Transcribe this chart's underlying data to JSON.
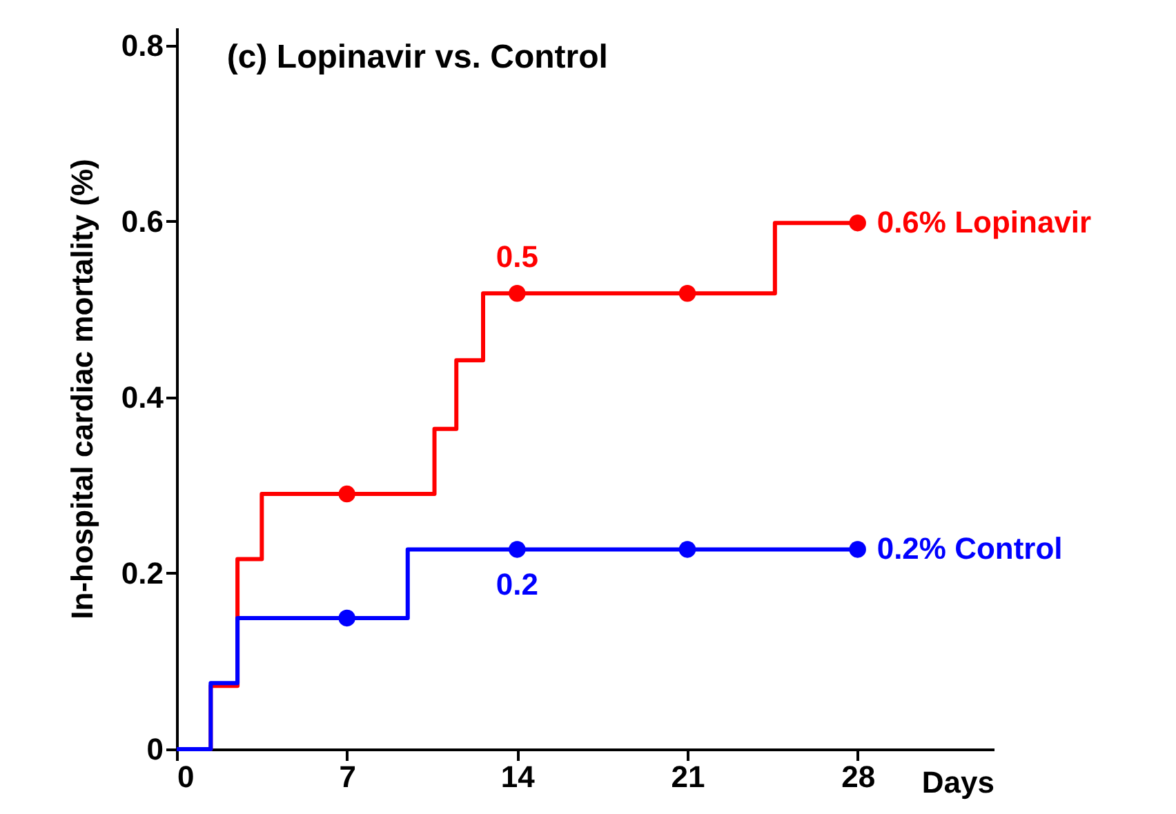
{
  "chart_data": {
    "type": "step",
    "title": "(c) Lopinavir vs. Control",
    "xlabel": "Days",
    "ylabel": "In-hospital cardiac mortality (%)",
    "xlim": [
      0,
      33.6
    ],
    "xticks": [
      0,
      7,
      14,
      21,
      28
    ],
    "ylim": [
      0,
      0.82
    ],
    "yticks": [
      0,
      0.2,
      0.4,
      0.6,
      0.8
    ],
    "grid": false,
    "series": [
      {
        "name": "0.6% Lopinavir",
        "color": "#ff0000",
        "x": [
          0,
          1.4,
          2.5,
          3.5,
          10.6,
          11.5,
          12.6,
          24.6,
          28
        ],
        "values": [
          0,
          0.072,
          0.216,
          0.29,
          0.364,
          0.442,
          0.518,
          0.598,
          0.598
        ]
      },
      {
        "name": "0.2% Control",
        "color": "#0000ff",
        "x": [
          0,
          1.4,
          2.5,
          9.5,
          28
        ],
        "values": [
          0,
          0.075,
          0.149,
          0.227,
          0.227
        ]
      },
      {
        "type": "scatter",
        "marker": "circle",
        "color": "#ff0000",
        "x": [
          7,
          14,
          21,
          28
        ],
        "values": [
          0.29,
          0.518,
          0.518,
          0.598
        ]
      },
      {
        "type": "scatter",
        "marker": "circle",
        "color": "#0000ff",
        "x": [
          7,
          14,
          21,
          28
        ],
        "values": [
          0.149,
          0.227,
          0.227,
          0.227
        ]
      }
    ],
    "annotations": [
      {
        "text": "0.5",
        "x": 14,
        "y": 0.518
      },
      {
        "text": "0.2",
        "x": 14,
        "y": 0.227
      }
    ]
  }
}
